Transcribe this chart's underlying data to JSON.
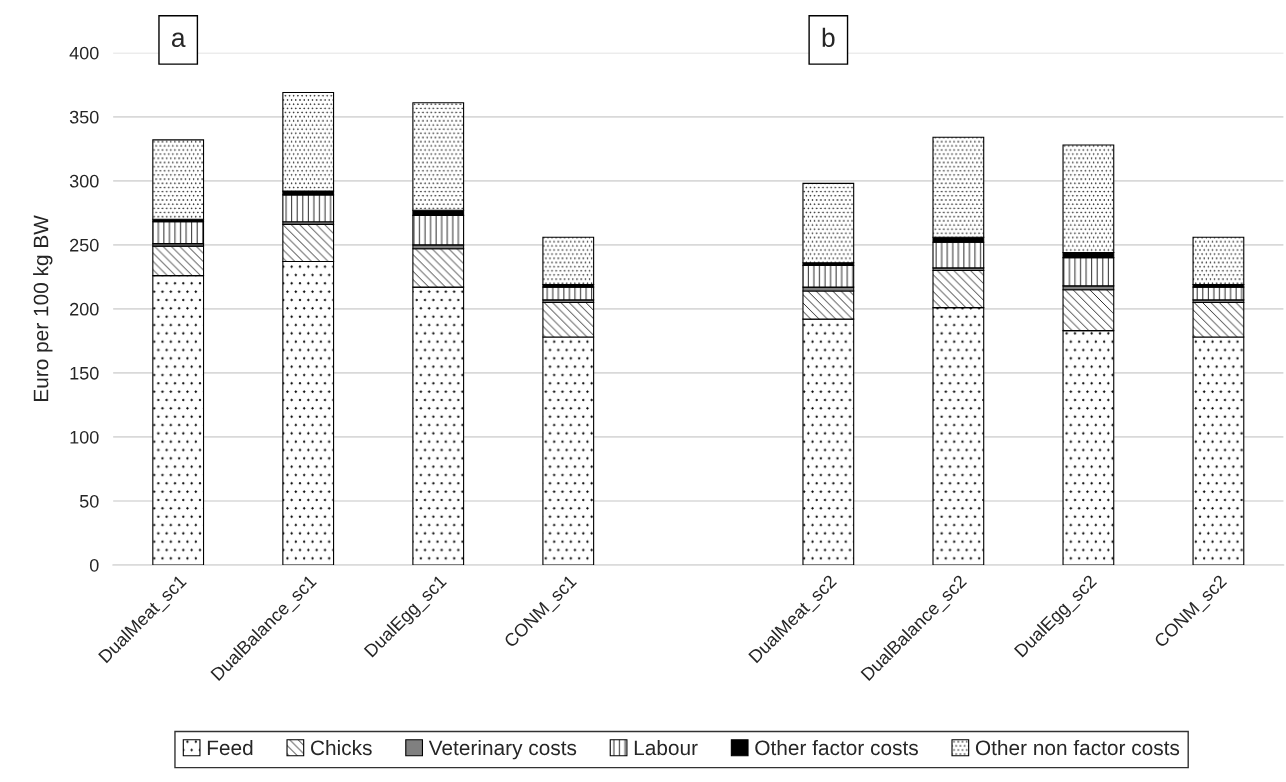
{
  "chart_data": {
    "type": "bar",
    "stacked": true,
    "ylabel": "Euro per 100 kg BW",
    "categories": [
      "DualMeat_sc1",
      "DualBalance_sc1",
      "DualEgg_sc1",
      "CONM_sc1",
      null,
      "DualMeat_sc2",
      "DualBalance_sc2",
      "DualEgg_sc2",
      "CONM_sc2"
    ],
    "series": [
      {
        "name": "Feed",
        "color": "#000000",
        "values": [
          226,
          237,
          217,
          178,
          null,
          192,
          201,
          183,
          178
        ]
      },
      {
        "name": "Chicks",
        "color": "#000000",
        "values": [
          23,
          29,
          30,
          27,
          null,
          22,
          29,
          32,
          27
        ]
      },
      {
        "name": "Veterinary costs",
        "color": "#808080",
        "values": [
          2,
          2,
          3,
          2,
          null,
          3,
          2,
          3,
          2
        ]
      },
      {
        "name": "Labour",
        "color": "#000000",
        "values": [
          17,
          21,
          23,
          10,
          null,
          17,
          20,
          22,
          10
        ]
      },
      {
        "name": "Other factor costs",
        "color": "#000000",
        "values": [
          2,
          3,
          4,
          2,
          null,
          2,
          4,
          4,
          2
        ]
      },
      {
        "name": "Other non factor costs",
        "color": "#000000",
        "values": [
          62,
          77,
          84,
          37,
          null,
          62,
          78,
          84,
          37
        ]
      }
    ],
    "ylim": [
      0,
      400
    ],
    "yticks": [
      0,
      50,
      100,
      150,
      200,
      250,
      300,
      350,
      400
    ],
    "grid": "y",
    "legend": "bottom",
    "annotations": [
      "a",
      "b"
    ]
  }
}
